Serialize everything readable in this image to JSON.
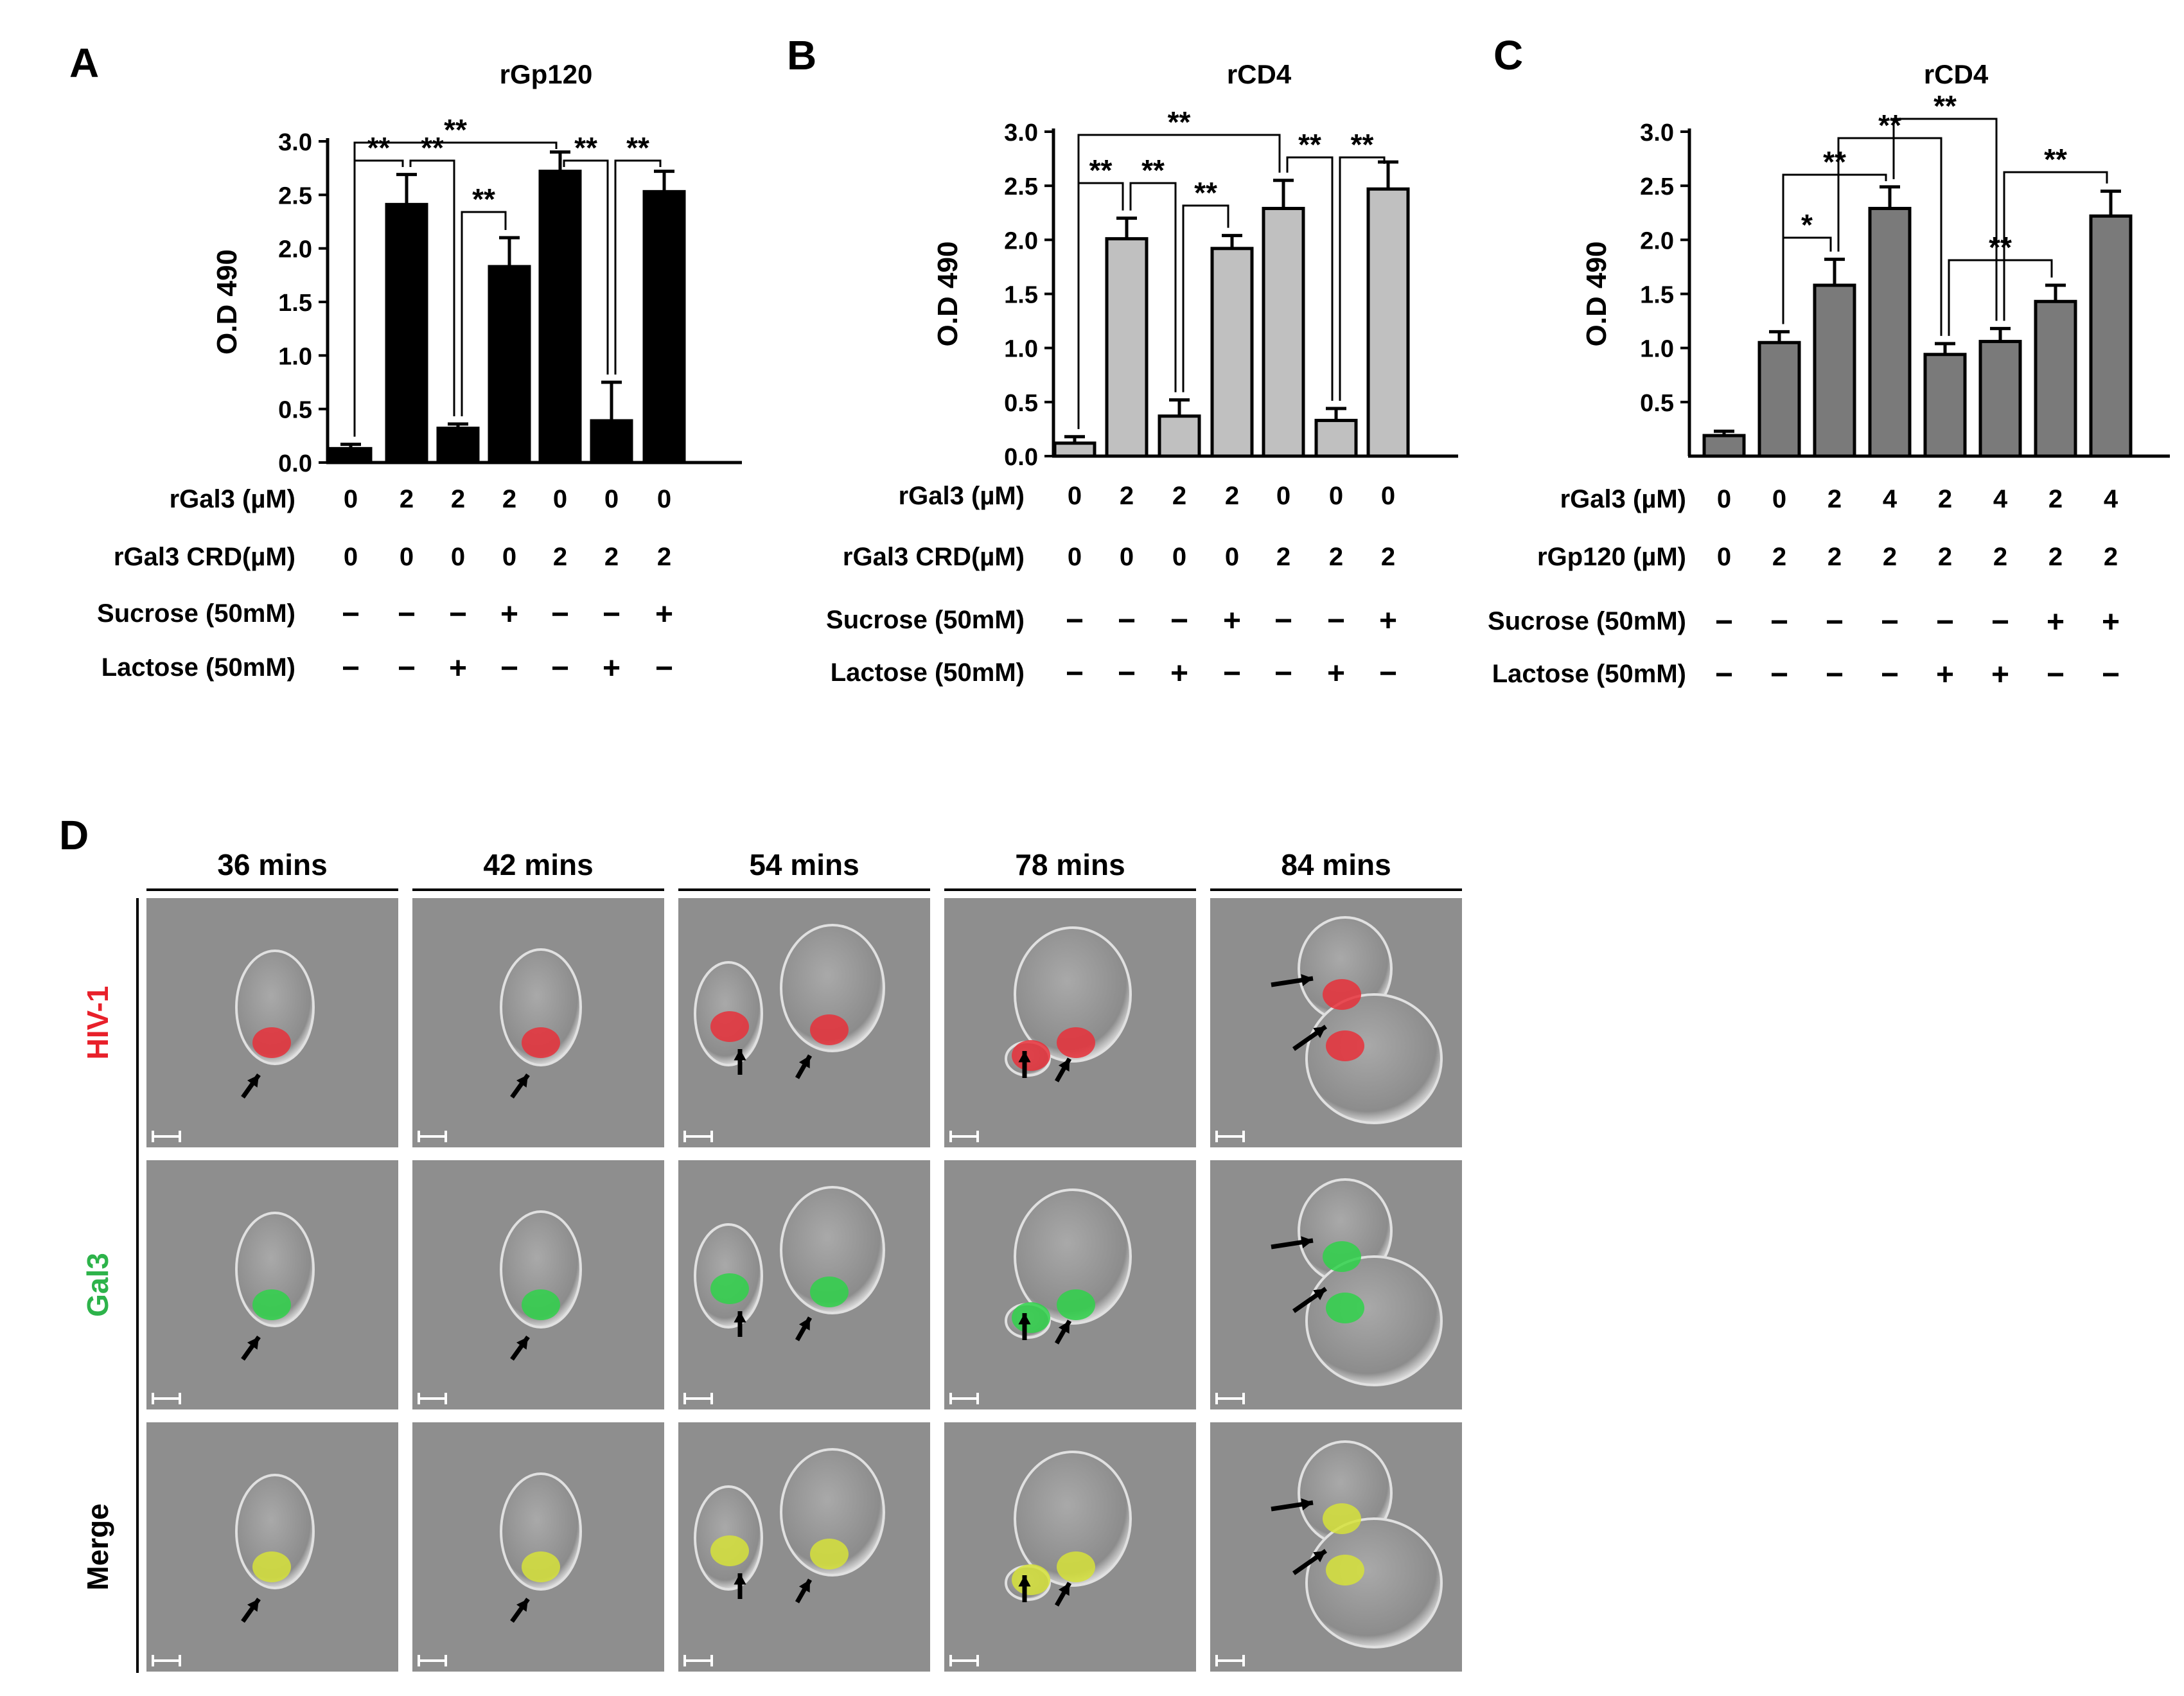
{
  "panel_letters": {
    "a": "A",
    "b": "B",
    "c": "C",
    "d": "D"
  },
  "chart_data": [
    {
      "id": "A",
      "type": "bar",
      "title": "rGp120",
      "ylabel": "O.D 490",
      "ylim": [
        0,
        3.0
      ],
      "yticks": [
        "0.0",
        "0.5",
        "1.0",
        "1.5",
        "2.0",
        "2.5",
        "3.0"
      ],
      "bar_color": "#000000",
      "values": [
        0.13,
        2.41,
        0.32,
        1.83,
        2.72,
        0.39,
        2.53
      ],
      "errors": [
        0.04,
        0.28,
        0.04,
        0.27,
        0.18,
        0.36,
        0.19
      ],
      "conditions": [
        {
          "label": "rGal3 (µM)",
          "values": [
            "0",
            "2",
            "2",
            "2",
            "0",
            "0",
            "0"
          ]
        },
        {
          "label": "rGal3 CRD(µM)",
          "values": [
            "0",
            "0",
            "0",
            "0",
            "2",
            "2",
            "2"
          ]
        },
        {
          "label": "Sucrose  (50mM)",
          "values": [
            "−",
            "−",
            "−",
            "+",
            "−",
            "−",
            "+"
          ]
        },
        {
          "label": "Lactose  (50mM)",
          "values": [
            "−",
            "−",
            "+",
            "−",
            "−",
            "+",
            "−"
          ]
        }
      ],
      "significance": [
        {
          "from": 0,
          "to": 1,
          "label": "**"
        },
        {
          "from": 1,
          "to": 2,
          "label": "**"
        },
        {
          "from": 2,
          "to": 3,
          "label": "**"
        },
        {
          "from": 0,
          "to": 4,
          "label": "**"
        },
        {
          "from": 4,
          "to": 5,
          "label": "**"
        },
        {
          "from": 5,
          "to": 6,
          "label": "**"
        }
      ]
    },
    {
      "id": "B",
      "type": "bar",
      "title": "rCD4",
      "ylabel": "O.D 490",
      "ylim": [
        0,
        3.0
      ],
      "yticks": [
        "0.0",
        "0.5",
        "1.0",
        "1.5",
        "2.0",
        "2.5",
        "3.0"
      ],
      "bar_color": "#c0c0c0",
      "values": [
        0.12,
        2.01,
        0.37,
        1.92,
        2.29,
        0.33,
        2.47
      ],
      "errors": [
        0.06,
        0.19,
        0.15,
        0.12,
        0.26,
        0.11,
        0.25
      ],
      "conditions": [
        {
          "label": "rGal3 (µM)",
          "values": [
            "0",
            "2",
            "2",
            "2",
            "0",
            "0",
            "0"
          ]
        },
        {
          "label": "rGal3 CRD(µM)",
          "values": [
            "0",
            "0",
            "0",
            "0",
            "2",
            "2",
            "2"
          ]
        },
        {
          "label": "Sucrose  (50mM)",
          "values": [
            "−",
            "−",
            "−",
            "+",
            "−",
            "−",
            "+"
          ]
        },
        {
          "label": "Lactose  (50mM)",
          "values": [
            "−",
            "−",
            "+",
            "−",
            "−",
            "+",
            "−"
          ]
        }
      ],
      "significance": [
        {
          "from": 0,
          "to": 1,
          "label": "**"
        },
        {
          "from": 1,
          "to": 2,
          "label": "**"
        },
        {
          "from": 2,
          "to": 3,
          "label": "**"
        },
        {
          "from": 0,
          "to": 4,
          "label": "**"
        },
        {
          "from": 4,
          "to": 5,
          "label": "**"
        },
        {
          "from": 5,
          "to": 6,
          "label": "**"
        }
      ]
    },
    {
      "id": "C",
      "type": "bar",
      "title": "rCD4",
      "ylabel": "O.D 490",
      "ylim": [
        0,
        3.0
      ],
      "yticks": [
        "0.5",
        "1.0",
        "1.5",
        "2.0",
        "2.5",
        "3.0"
      ],
      "bar_color": "#7a7a7a",
      "values": [
        0.19,
        1.05,
        1.58,
        2.29,
        0.94,
        1.06,
        1.43,
        2.22
      ],
      "errors": [
        0.04,
        0.1,
        0.24,
        0.2,
        0.1,
        0.12,
        0.15,
        0.23
      ],
      "conditions": [
        {
          "label": "rGal3 (µM)",
          "values": [
            "0",
            "0",
            "2",
            "4",
            "2",
            "4",
            "2",
            "4"
          ]
        },
        {
          "label": "rGp120 (µM)",
          "values": [
            "0",
            "2",
            "2",
            "2",
            "2",
            "2",
            "2",
            "2"
          ]
        },
        {
          "label": "Sucrose  (50mM)",
          "values": [
            "−",
            "−",
            "−",
            "−",
            "−",
            "−",
            "+",
            "+"
          ]
        },
        {
          "label": "Lactose  (50mM)",
          "values": [
            "−",
            "−",
            "−",
            "−",
            "+",
            "+",
            "−",
            "−"
          ]
        }
      ],
      "significance": [
        {
          "from": 1,
          "to": 2,
          "label": "*"
        },
        {
          "from": 1,
          "to": 3,
          "label": "**"
        },
        {
          "from": 2,
          "to": 4,
          "label": "**"
        },
        {
          "from": 3,
          "to": 5,
          "label": "**"
        },
        {
          "from": 4,
          "to": 6,
          "label": "**"
        },
        {
          "from": 5,
          "to": 7,
          "label": "**"
        }
      ]
    }
  ],
  "microscopy": {
    "timepoints": [
      "36 mins",
      "42 mins",
      "54 mins",
      "78 mins",
      "84 mins"
    ],
    "rows": [
      {
        "label": "HIV-1",
        "color": "#e8202a"
      },
      {
        "label": "Gal3",
        "color": "#2db34a"
      },
      {
        "label": "Merge",
        "color": "#000000"
      }
    ]
  }
}
